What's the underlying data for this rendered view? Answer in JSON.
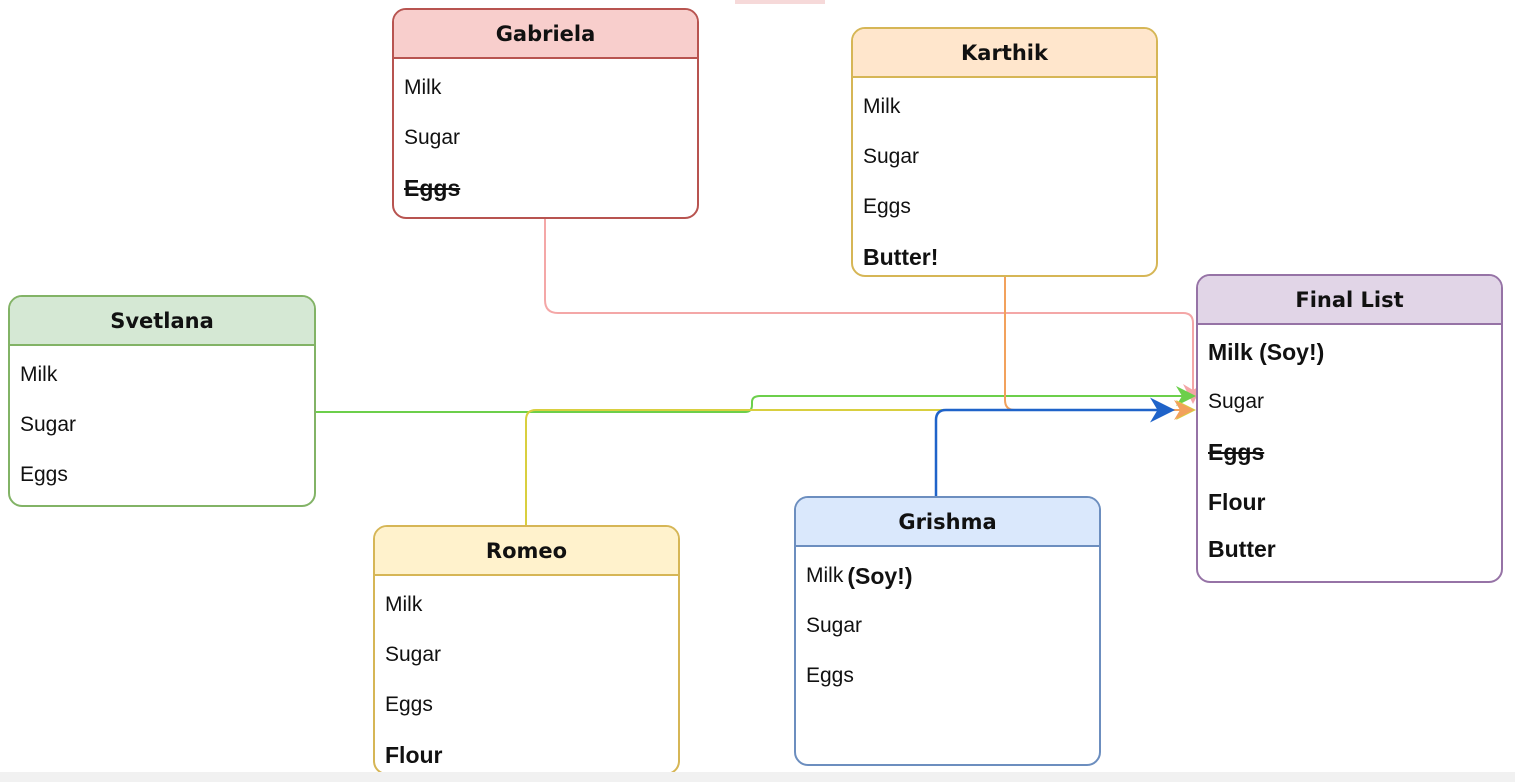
{
  "cards": {
    "gabriela": {
      "title": "Gabriela",
      "items": [
        "Milk",
        "Sugar",
        "Eggs"
      ]
    },
    "karthik": {
      "title": "Karthik",
      "items": [
        "Milk",
        "Sugar",
        "Eggs",
        "Butter!"
      ]
    },
    "svetlana": {
      "title": "Svetlana",
      "items": [
        "Milk",
        "Sugar",
        "Eggs"
      ]
    },
    "romeo": {
      "title": "Romeo",
      "items": [
        "Milk",
        "Sugar",
        "Eggs",
        "Flour"
      ]
    },
    "grishma": {
      "title": "Grishma",
      "items": [
        "Milk",
        "Sugar",
        "Eggs"
      ],
      "milk_suffix": "(Soy!)"
    },
    "final": {
      "title": "Final List",
      "items": [
        "Milk (Soy!)",
        "Sugar",
        "Eggs",
        "Flour",
        "Butter"
      ]
    }
  },
  "colors": {
    "gabriela_line": "#f4a7a7",
    "karthik_line": "#f2a15c",
    "svetlana_line": "#6ccf4b",
    "romeo_line": "#d9cf3f",
    "grishma_line": "#1f63c9"
  }
}
